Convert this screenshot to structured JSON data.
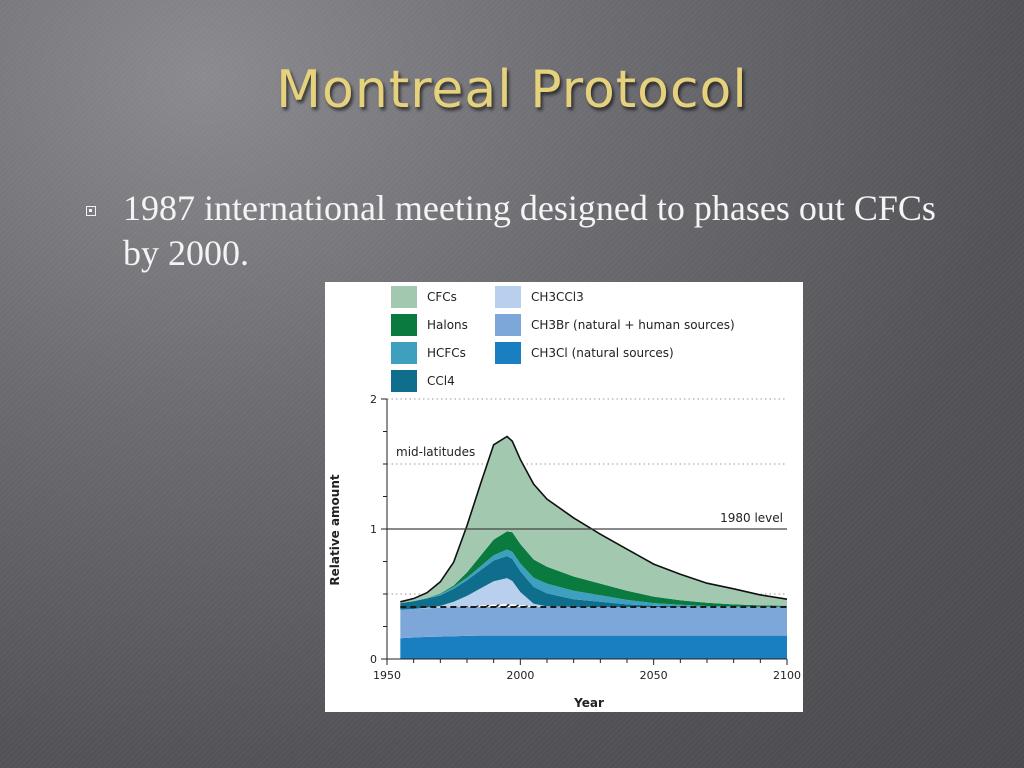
{
  "slide": {
    "title": "Montreal Protocol",
    "bullet": "1987 international meeting designed to phases out CFCs by 2000."
  },
  "chart_data": {
    "type": "area",
    "xlabel": "Year",
    "ylabel": "Relative amount",
    "xlim": [
      1950,
      2100
    ],
    "ylim": [
      0,
      2
    ],
    "x_ticks": [
      "1950",
      "2000",
      "2050",
      "2100"
    ],
    "y_ticks": [
      "0",
      "1",
      "2"
    ],
    "grid": "dotted horizontal",
    "legend_position": "top",
    "annotations": {
      "region": "mid-latitudes",
      "reference": "1980 level"
    },
    "reference_line": 1.0,
    "x": [
      1955,
      1960,
      1965,
      1970,
      1975,
      1980,
      1985,
      1990,
      1995,
      1997,
      2000,
      2005,
      2010,
      2020,
      2030,
      2040,
      2050,
      2060,
      2070,
      2080,
      2090,
      2100
    ],
    "series": [
      {
        "name": "CH3Cl (natural sources)",
        "key": "ch3cl",
        "color": "#1a7fc1",
        "values": [
          0.16,
          0.165,
          0.17,
          0.172,
          0.175,
          0.178,
          0.18,
          0.18,
          0.18,
          0.18,
          0.18,
          0.18,
          0.18,
          0.18,
          0.18,
          0.18,
          0.18,
          0.18,
          0.18,
          0.18,
          0.18,
          0.18
        ]
      },
      {
        "name": "CH3Br (natural + human sources)",
        "key": "ch3br",
        "color": "#7da7d9",
        "values": [
          0.22,
          0.22,
          0.22,
          0.222,
          0.225,
          0.228,
          0.232,
          0.238,
          0.242,
          0.24,
          0.235,
          0.225,
          0.22,
          0.22,
          0.22,
          0.22,
          0.22,
          0.22,
          0.22,
          0.22,
          0.22,
          0.22
        ]
      },
      {
        "name": "CH3CCl3",
        "key": "ch3ccl3",
        "color": "#b8cfee",
        "values": [
          0.0,
          0.0,
          0.005,
          0.015,
          0.04,
          0.08,
          0.13,
          0.18,
          0.2,
          0.18,
          0.1,
          0.02,
          0.005,
          0,
          0,
          0,
          0,
          0,
          0,
          0,
          0,
          0
        ]
      },
      {
        "name": "CCl4",
        "key": "ccl4",
        "color": "#0f6e8c",
        "values": [
          0.05,
          0.06,
          0.07,
          0.08,
          0.1,
          0.12,
          0.14,
          0.16,
          0.17,
          0.17,
          0.16,
          0.13,
          0.1,
          0.06,
          0.04,
          0.02,
          0.01,
          0.005,
          0,
          0,
          0,
          0
        ]
      },
      {
        "name": "HCFCs",
        "key": "hcfcs",
        "color": "#3e9fbf",
        "values": [
          0.0,
          0.0,
          0.005,
          0.01,
          0.015,
          0.02,
          0.03,
          0.04,
          0.05,
          0.055,
          0.06,
          0.07,
          0.075,
          0.065,
          0.05,
          0.035,
          0.02,
          0.012,
          0.008,
          0.005,
          0.003,
          0.002
        ]
      },
      {
        "name": "Halons",
        "key": "halons",
        "color": "#0a7a3f",
        "values": [
          0.0,
          0.0,
          0.0,
          0.005,
          0.01,
          0.04,
          0.08,
          0.12,
          0.14,
          0.15,
          0.15,
          0.14,
          0.13,
          0.11,
          0.09,
          0.07,
          0.05,
          0.035,
          0.025,
          0.015,
          0.01,
          0.008
        ]
      },
      {
        "name": "CFCs",
        "key": "cfcs",
        "color": "#a2c9b0",
        "values": [
          0.01,
          0.02,
          0.04,
          0.09,
          0.18,
          0.36,
          0.55,
          0.73,
          0.73,
          0.7,
          0.65,
          0.58,
          0.52,
          0.45,
          0.38,
          0.32,
          0.25,
          0.2,
          0.15,
          0.12,
          0.08,
          0.05
        ]
      }
    ],
    "baseline_natural_level": 0.4
  }
}
